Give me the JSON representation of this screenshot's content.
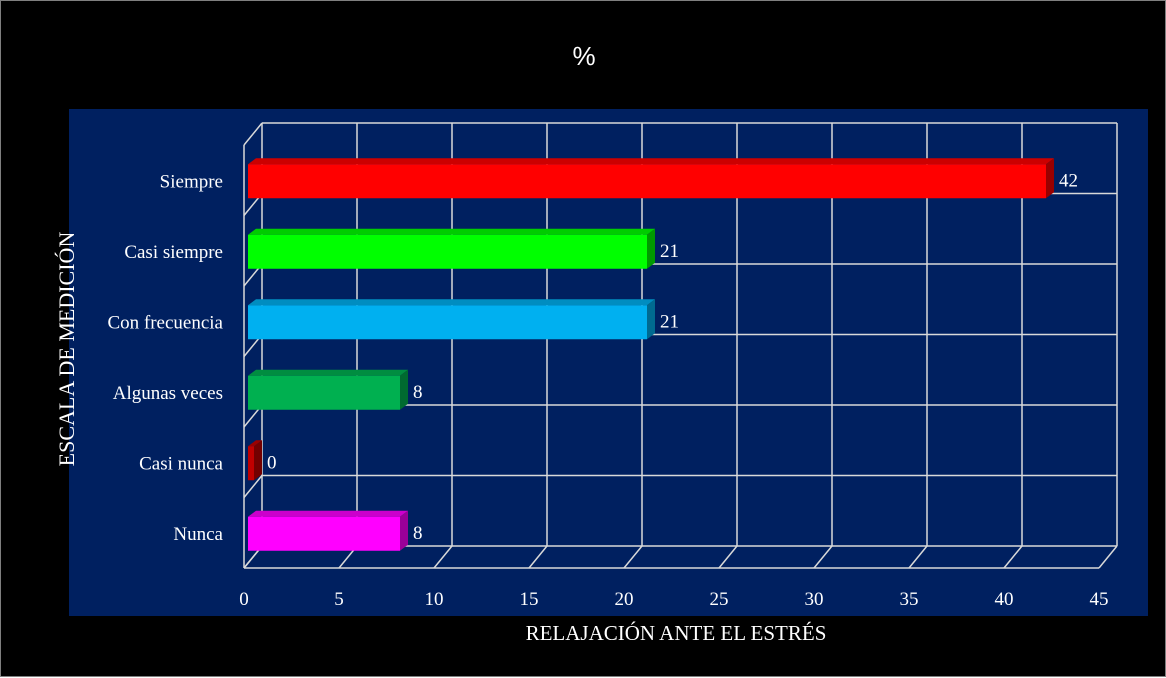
{
  "chart_data": {
    "type": "bar",
    "orientation": "horizontal",
    "title": "%",
    "xlabel": "RELAJACIÓN  ANTE EL ESTRÉS",
    "ylabel": "ESCALA  DE MEDICIÓN",
    "categories": [
      "Siempre",
      "Casi siempre",
      "Con frecuencia",
      "Algunas veces",
      "Casi nunca",
      "Nunca"
    ],
    "values": [
      42,
      21,
      21,
      8,
      0,
      8
    ],
    "data_labels": [
      "42",
      "21",
      "21",
      "8",
      "0",
      "8"
    ],
    "bar_colors": [
      "#ff0000",
      "#00ff00",
      "#00b0f0",
      "#00b050",
      "#c00000",
      "#ff00ff"
    ],
    "xlim": [
      0,
      45
    ],
    "xticks": [
      0,
      5,
      10,
      15,
      20,
      25,
      30,
      35,
      40,
      45
    ],
    "grid": true,
    "legend": "none",
    "background": "#002060"
  }
}
